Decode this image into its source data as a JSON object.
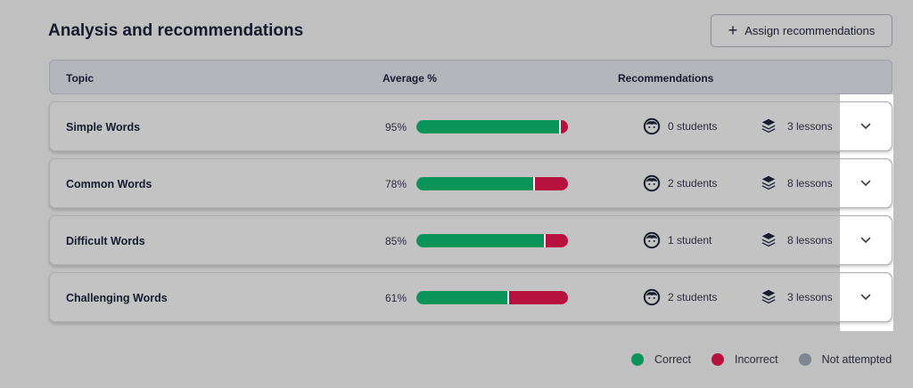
{
  "title": "Analysis and recommendations",
  "assign_button": {
    "icon": "plus-icon",
    "label": "Assign recommendations"
  },
  "table": {
    "headers": {
      "topic": "Topic",
      "average": "Average %",
      "recommendations": "Recommendations"
    },
    "rows": [
      {
        "topic": "Simple Words",
        "percent": "95%",
        "correct": 0.95,
        "students": "0 students",
        "lessons": "3 lessons"
      },
      {
        "topic": "Common Words",
        "percent": "78%",
        "correct": 0.78,
        "students": "2 students",
        "lessons": "8 lessons"
      },
      {
        "topic": "Difficult Words",
        "percent": "85%",
        "correct": 0.85,
        "students": "1 student",
        "lessons": "8 lessons"
      },
      {
        "topic": "Challenging Words",
        "percent": "61%",
        "correct": 0.61,
        "students": "2 students",
        "lessons": "3 lessons"
      }
    ]
  },
  "legend": [
    {
      "label": "Correct",
      "color": "#0a9459"
    },
    {
      "label": "Incorrect",
      "color": "#b5123f"
    },
    {
      "label": "Not attempted",
      "color": "#808590"
    }
  ],
  "icons": {
    "students": "student-face-icon",
    "lessons": "lessons-stack-icon",
    "expand": "chevron-down-icon"
  }
}
